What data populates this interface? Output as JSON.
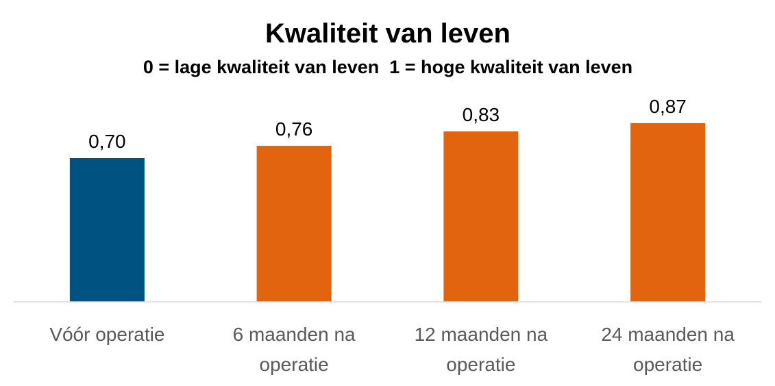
{
  "chart_data": {
    "type": "bar",
    "title": "Kwaliteit van leven",
    "subtitle": "0 = lage kwaliteit van leven  1 = hoge kwaliteit van leven",
    "categories": [
      [
        "Vóór operatie"
      ],
      [
        "6 maanden na",
        "operatie"
      ],
      [
        "12 maanden na",
        "operatie"
      ],
      [
        "24 maanden na",
        "operatie"
      ]
    ],
    "values": [
      0.7,
      0.76,
      0.83,
      0.87
    ],
    "data_labels": [
      "0,70",
      "0,76",
      "0,83",
      "0,87"
    ],
    "bar_colors": [
      "#005380",
      "#E3640E",
      "#E3640E",
      "#E3640E"
    ],
    "ylim": [
      0,
      1
    ],
    "xlabel": "",
    "ylabel": "",
    "grid": false,
    "legend": "none"
  }
}
